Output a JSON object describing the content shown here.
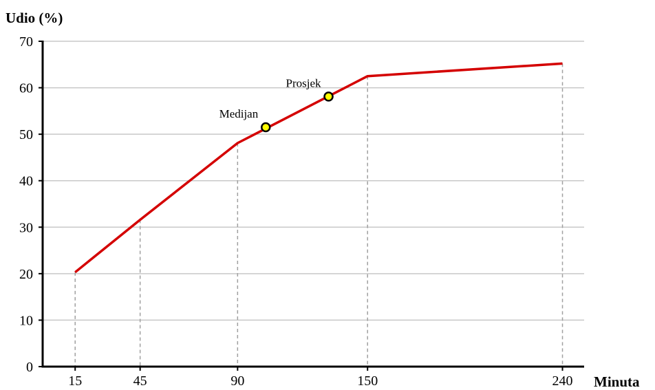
{
  "chart_data": {
    "type": "line",
    "ylabel": "Udio (%)",
    "xlabel": "Minuta",
    "ylim": [
      0,
      70
    ],
    "xlim": [
      0,
      250
    ],
    "y_ticks": [
      0,
      10,
      20,
      30,
      40,
      50,
      60,
      70
    ],
    "x_ticks": [
      15,
      45,
      90,
      150,
      240
    ],
    "grid": "horizontal",
    "series": [
      {
        "color": "#d40000",
        "points": [
          {
            "x": 15,
            "y": 20.3
          },
          {
            "x": 45,
            "y": 31.6
          },
          {
            "x": 90,
            "y": 48.1
          },
          {
            "x": 150,
            "y": 62.5
          },
          {
            "x": 240,
            "y": 65.2
          }
        ]
      }
    ],
    "annotations": [
      {
        "label": "Medijan",
        "x": 103,
        "y": 51.5,
        "marker_color": "#ffff00"
      },
      {
        "label": "Prosjek",
        "x": 132,
        "y": 58.1,
        "marker_color": "#ffff00"
      }
    ]
  }
}
